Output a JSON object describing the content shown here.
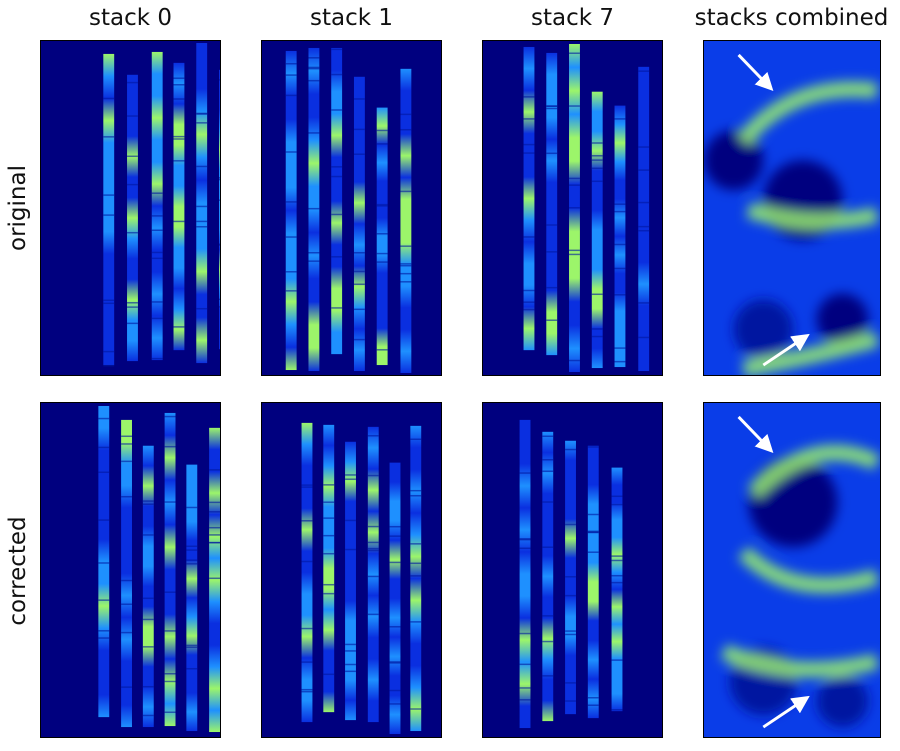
{
  "columns": [
    "stack 0",
    "stack 1",
    "stack 7",
    "stacks combined"
  ],
  "rows": [
    "original",
    "corrected"
  ],
  "colors": {
    "background": "#00007f",
    "strip_base": "#0a2fe0",
    "strip_mid": "#1e90ff",
    "highlight": "#9cf56a",
    "annotation_arrow": "#ffffff"
  }
}
